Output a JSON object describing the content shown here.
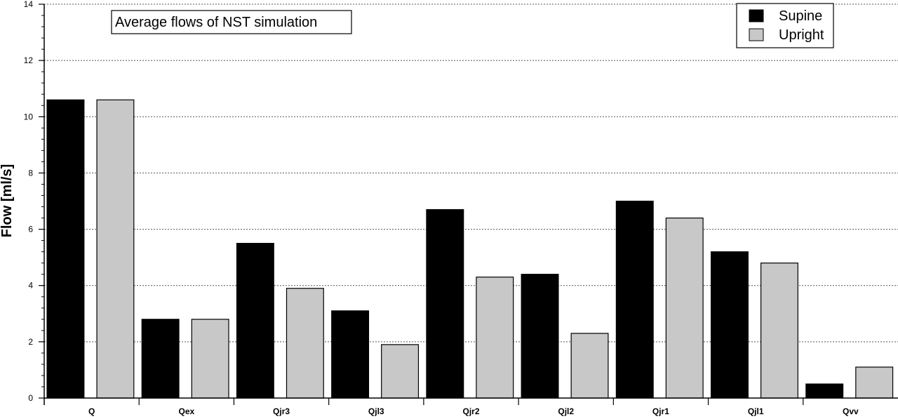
{
  "chart_data": {
    "type": "bar",
    "title": "Average flows of NST simulation",
    "xlabel": "",
    "ylabel": "Flow [ml/s]",
    "ylim": [
      0,
      14
    ],
    "yticks": [
      "0",
      "2",
      "4",
      "6",
      "8",
      "10",
      "12",
      "14"
    ],
    "grid": "horizontal dotted",
    "legend_position": "top-right",
    "categories": [
      "Q",
      "Qex",
      "Qjr3",
      "Qjl3",
      "Qjr2",
      "Qjl2",
      "Qjr1",
      "Qjl1",
      "Qvv"
    ],
    "series": [
      {
        "name": "Supine",
        "color": "#000000",
        "values": [
          10.6,
          2.8,
          5.5,
          3.1,
          6.7,
          4.4,
          7.0,
          5.2,
          0.5
        ]
      },
      {
        "name": "Upright",
        "color": "#c8c8c8",
        "values": [
          10.6,
          2.8,
          3.9,
          1.9,
          4.3,
          2.3,
          6.4,
          4.8,
          1.1
        ]
      }
    ]
  }
}
